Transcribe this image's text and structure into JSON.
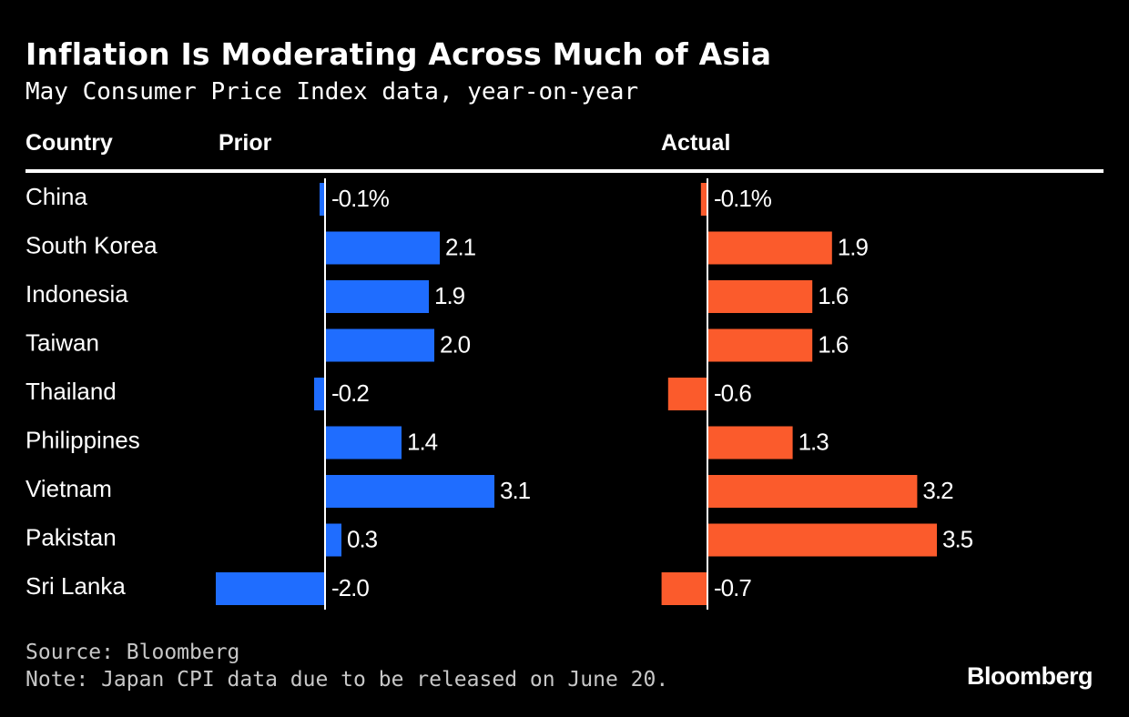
{
  "header": {
    "title": "Inflation Is Moderating Across Much of Asia",
    "subtitle": "May Consumer Price Index data, year-on-year"
  },
  "columns": {
    "country": "Country",
    "prior": "Prior",
    "actual": "Actual"
  },
  "chart_data": {
    "type": "bar",
    "orientation": "horizontal",
    "categories": [
      "China",
      "South Korea",
      "Indonesia",
      "Taiwan",
      "Thailand",
      "Philippines",
      "Vietnam",
      "Pakistan",
      "Sri Lanka"
    ],
    "series": [
      {
        "name": "Prior",
        "color": "#1f6dff",
        "values": [
          -0.1,
          2.1,
          1.9,
          2.0,
          -0.2,
          1.4,
          3.1,
          0.3,
          -2.0
        ],
        "labels": [
          "-0.1%",
          "2.1",
          "1.9",
          "2.0",
          "-0.2",
          "1.4",
          "3.1",
          "0.3",
          "-2.0"
        ]
      },
      {
        "name": "Actual",
        "color": "#fb5b2c",
        "values": [
          -0.1,
          1.9,
          1.6,
          1.6,
          -0.6,
          1.3,
          3.2,
          3.5,
          -0.7
        ],
        "labels": [
          "-0.1%",
          "1.9",
          "1.6",
          "1.6",
          "-0.6",
          "1.3",
          "3.2",
          "3.5",
          "-0.7"
        ]
      }
    ],
    "unit": "%"
  },
  "footer": {
    "source": "Source: Bloomberg",
    "note": "Note: Japan CPI data due to be released on June 20.",
    "brand": "Bloomberg"
  }
}
